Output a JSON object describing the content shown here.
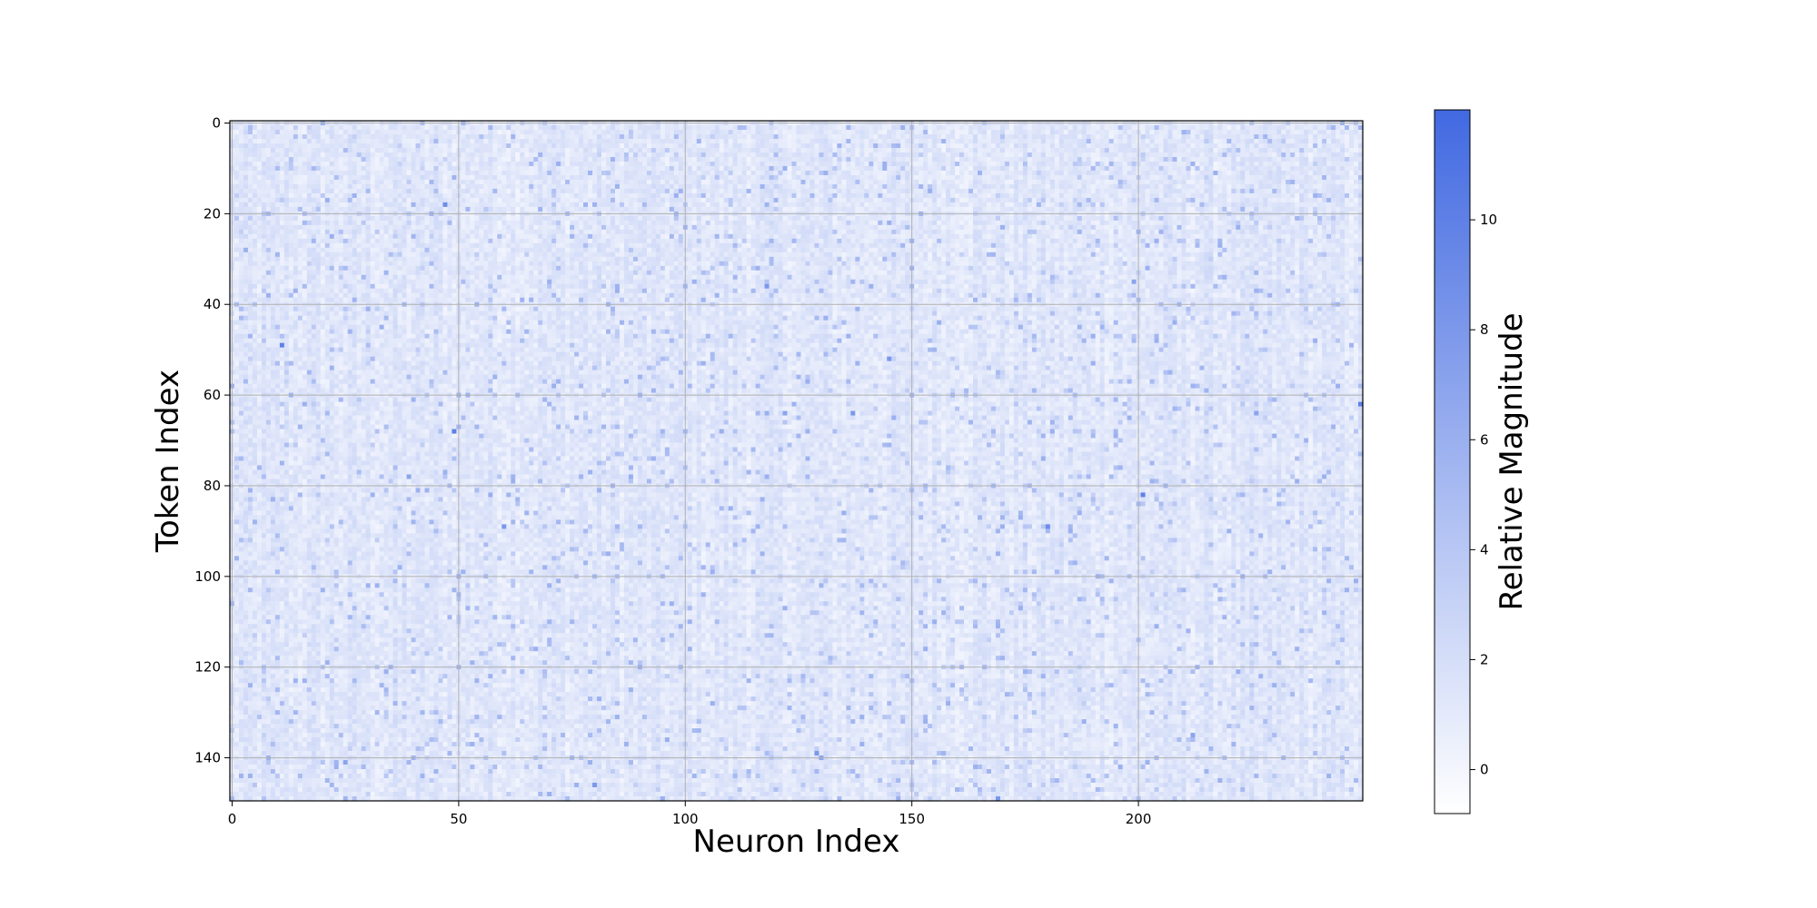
{
  "chart_data": {
    "type": "heatmap",
    "xlabel": "Neuron Index",
    "ylabel": "Token Index",
    "x_range": [
      0,
      250
    ],
    "y_range": [
      0,
      150
    ],
    "y_inverted": true,
    "x_ticks": [
      0,
      50,
      100,
      150,
      200
    ],
    "y_ticks": [
      0,
      20,
      40,
      60,
      80,
      100,
      120,
      140
    ],
    "grid": true,
    "colormap": {
      "low": "#ffffff",
      "high": "#4169e1"
    },
    "colorbar": {
      "label": "Relative Magnitude",
      "range": [
        -0.8,
        12
      ],
      "ticks": [
        0,
        2,
        4,
        6,
        8,
        10
      ]
    },
    "value_distribution": {
      "baseline_range": [
        0.3,
        2.5
      ],
      "typical_outlier_range": [
        3,
        6
      ]
    },
    "outliers": [
      {
        "neuron": 47,
        "token": 18,
        "value": 9
      },
      {
        "neuron": 11,
        "token": 49,
        "value": 10
      },
      {
        "neuron": 49,
        "token": 68,
        "value": 10
      },
      {
        "neuron": 118,
        "token": 36,
        "value": 8
      },
      {
        "neuron": 145,
        "token": 52,
        "value": 8
      },
      {
        "neuron": 137,
        "token": 64,
        "value": 8
      },
      {
        "neuron": 249,
        "token": 62,
        "value": 10
      },
      {
        "neuron": 201,
        "token": 82,
        "value": 10
      },
      {
        "neuron": 180,
        "token": 89,
        "value": 9
      },
      {
        "neuron": 60,
        "token": 89,
        "value": 8
      },
      {
        "neuron": 39,
        "token": 78,
        "value": 7
      },
      {
        "neuron": 129,
        "token": 139,
        "value": 8
      },
      {
        "neuron": 130,
        "token": 140,
        "value": 7
      },
      {
        "neuron": 80,
        "token": 146,
        "value": 8
      },
      {
        "neuron": 169,
        "token": 149,
        "value": 8
      },
      {
        "neuron": 25,
        "token": 141,
        "value": 7
      },
      {
        "neuron": 212,
        "token": 135,
        "value": 7
      },
      {
        "neuron": 199,
        "token": 35,
        "value": 7
      },
      {
        "neuron": 122,
        "token": 64,
        "value": 7
      },
      {
        "neuron": 248,
        "token": 101,
        "value": 6
      },
      {
        "neuron": 57,
        "token": 82,
        "value": 6
      },
      {
        "neuron": 226,
        "token": 64,
        "value": 7
      },
      {
        "neuron": 222,
        "token": 121,
        "value": 6
      },
      {
        "neuron": 96,
        "token": 136,
        "value": 6
      },
      {
        "neuron": 22,
        "token": 25,
        "value": 6
      },
      {
        "neuron": 33,
        "token": 45,
        "value": 6
      },
      {
        "neuron": 108,
        "token": 68,
        "value": 6
      },
      {
        "neuron": 88,
        "token": 78,
        "value": 6
      },
      {
        "neuron": 174,
        "token": 87,
        "value": 6
      },
      {
        "neuron": 250,
        "token": 62,
        "value": 9
      }
    ]
  }
}
